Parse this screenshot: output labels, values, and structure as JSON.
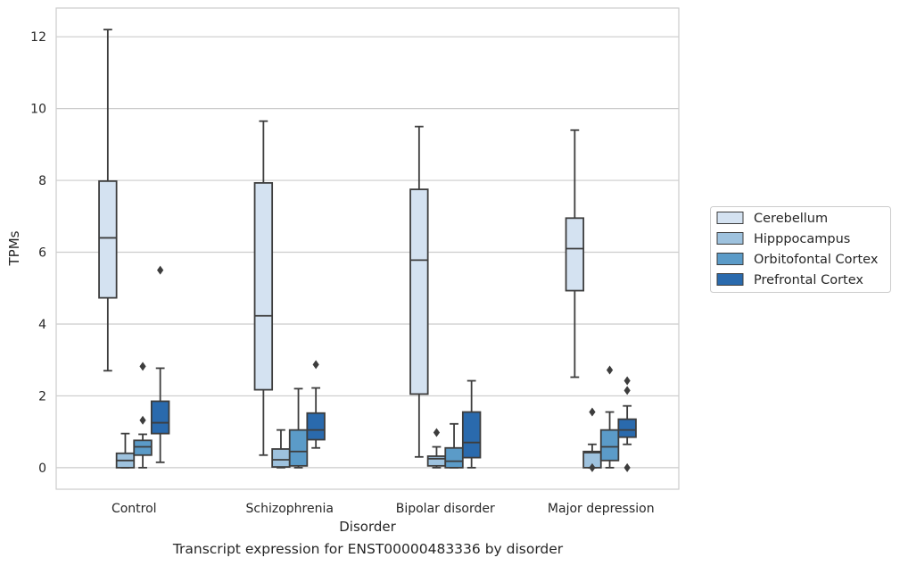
{
  "caption": "Transcript expression for ENST00000483336 by disorder",
  "chart_data": {
    "type": "boxplot",
    "xlabel": "Disorder",
    "ylabel": "TPMs",
    "ylim": [
      -0.6,
      12.8
    ],
    "yticks": [
      0,
      2,
      4,
      6,
      8,
      10,
      12
    ],
    "grid": "horizontal",
    "legend_position": "right-center",
    "categories": [
      "Control",
      "Schizophrenia",
      "Bipolar disorder",
      "Major depression"
    ],
    "series": [
      {
        "name": "Cerebellum",
        "color": "#d4e2f1",
        "boxes": [
          {
            "whislo": 2.7,
            "q1": 4.73,
            "med": 6.4,
            "q3": 7.98,
            "whishi": 12.2,
            "fliers": []
          },
          {
            "whislo": 0.35,
            "q1": 2.17,
            "med": 4.23,
            "q3": 7.93,
            "whishi": 9.65,
            "fliers": []
          },
          {
            "whislo": 0.3,
            "q1": 2.05,
            "med": 5.78,
            "q3": 7.75,
            "whishi": 9.5,
            "fliers": []
          },
          {
            "whislo": 2.52,
            "q1": 4.93,
            "med": 6.1,
            "q3": 6.95,
            "whishi": 9.4,
            "fliers": []
          }
        ]
      },
      {
        "name": "Hipppocampus",
        "color": "#9ec2de",
        "boxes": [
          {
            "whislo": 0.0,
            "q1": 0.0,
            "med": 0.2,
            "q3": 0.4,
            "whishi": 0.95,
            "fliers": []
          },
          {
            "whislo": 0.0,
            "q1": 0.02,
            "med": 0.22,
            "q3": 0.52,
            "whishi": 1.05,
            "fliers": []
          },
          {
            "whislo": 0.0,
            "q1": 0.05,
            "med": 0.25,
            "q3": 0.32,
            "whishi": 0.58,
            "fliers": [
              0.98
            ]
          },
          {
            "whislo": 0.0,
            "q1": 0.0,
            "med": 0.42,
            "q3": 0.45,
            "whishi": 0.65,
            "fliers": [
              1.55,
              0.0
            ]
          }
        ]
      },
      {
        "name": "Orbitofontal Cortex",
        "color": "#5b9bc8",
        "boxes": [
          {
            "whislo": 0.0,
            "q1": 0.35,
            "med": 0.58,
            "q3": 0.76,
            "whishi": 0.93,
            "fliers": [
              1.32,
              2.82
            ]
          },
          {
            "whislo": 0.0,
            "q1": 0.05,
            "med": 0.45,
            "q3": 1.05,
            "whishi": 2.2,
            "fliers": []
          },
          {
            "whislo": 0.0,
            "q1": 0.0,
            "med": 0.18,
            "q3": 0.55,
            "whishi": 1.22,
            "fliers": []
          },
          {
            "whislo": 0.0,
            "q1": 0.2,
            "med": 0.58,
            "q3": 1.05,
            "whishi": 1.55,
            "fliers": [
              2.72
            ]
          }
        ]
      },
      {
        "name": "Prefrontal Cortex",
        "color": "#2a6aad",
        "boxes": [
          {
            "whislo": 0.15,
            "q1": 0.95,
            "med": 1.25,
            "q3": 1.85,
            "whishi": 2.77,
            "fliers": [
              5.5
            ]
          },
          {
            "whislo": 0.55,
            "q1": 0.78,
            "med": 1.05,
            "q3": 1.52,
            "whishi": 2.22,
            "fliers": [
              2.87
            ]
          },
          {
            "whislo": 0.0,
            "q1": 0.28,
            "med": 0.7,
            "q3": 1.55,
            "whishi": 2.42,
            "fliers": []
          },
          {
            "whislo": 0.65,
            "q1": 0.85,
            "med": 1.05,
            "q3": 1.35,
            "whishi": 1.72,
            "fliers": [
              2.15,
              2.42,
              0.0
            ]
          }
        ]
      }
    ]
  }
}
